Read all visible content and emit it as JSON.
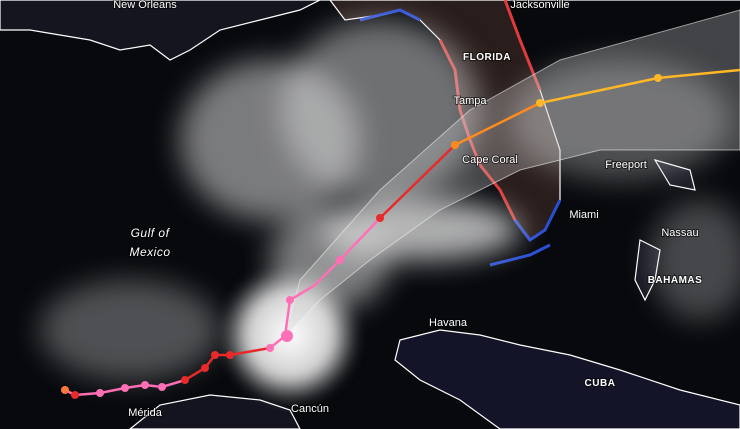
{
  "map": {
    "labels": [
      "New Orleans",
      "Jacksonville",
      "FLORIDA",
      "Tampa",
      "Cape Coral",
      "Freeport",
      "Miami",
      "Nassau",
      "Gulf of",
      "Mexico",
      "BAHAMAS",
      "Havana",
      "CUBA",
      "Mérida",
      "Cancún"
    ]
  }
}
